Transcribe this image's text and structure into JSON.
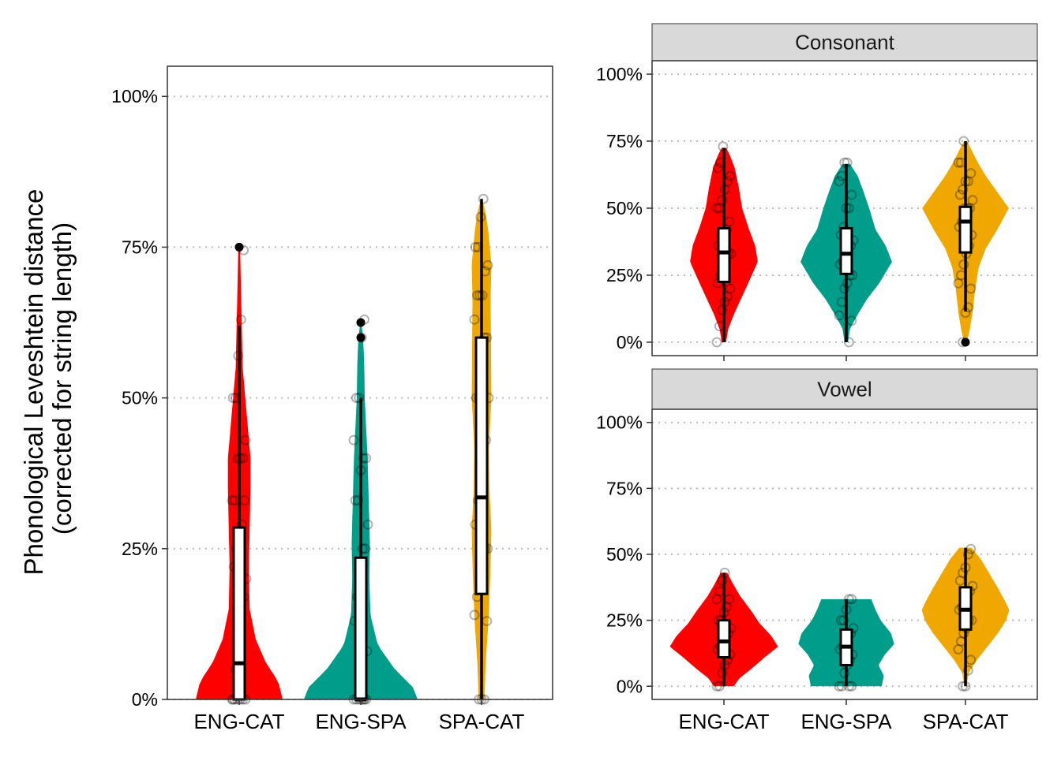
{
  "figure": {
    "ylabel_line1": "Phonological Leveshtein distance",
    "ylabel_line2": "(corrected for string length)"
  },
  "colors": {
    "ENG-CAT": "#ff0000",
    "ENG-SPA": "#009e8a",
    "SPA-CAT": "#f0a800",
    "strip": "#d9d9d9",
    "grid": "#bdbdbd"
  },
  "chart_data": [
    {
      "type": "violin",
      "panel": "overall",
      "title": "",
      "xlabel": "",
      "ylabel": "Phonological Leveshtein distance (corrected for string length)",
      "categories": [
        "ENG-CAT",
        "ENG-SPA",
        "SPA-CAT"
      ],
      "ylim": [
        0,
        1.05
      ],
      "yticks": [
        0,
        0.25,
        0.5,
        0.75,
        1.0
      ],
      "ytick_labels": [
        "0%",
        "25%",
        "50%",
        "75%",
        "100%"
      ],
      "grid": "horizontal dotted",
      "series": [
        {
          "name": "ENG-CAT",
          "box": {
            "q1": 0.0,
            "median": 0.06,
            "q3": 0.285,
            "whisker_low": 0.0,
            "whisker_high": 0.62
          },
          "outliers": [
            0.75
          ],
          "density": [
            [
              0.0,
              1.0
            ],
            [
              0.03,
              0.9
            ],
            [
              0.06,
              0.62
            ],
            [
              0.1,
              0.38
            ],
            [
              0.15,
              0.24
            ],
            [
              0.22,
              0.22
            ],
            [
              0.28,
              0.24
            ],
            [
              0.35,
              0.26
            ],
            [
              0.4,
              0.26
            ],
            [
              0.45,
              0.2
            ],
            [
              0.5,
              0.14
            ],
            [
              0.55,
              0.08
            ],
            [
              0.62,
              0.06
            ],
            [
              0.68,
              0.04
            ],
            [
              0.75,
              0.02
            ]
          ],
          "points": [
            0.0,
            0.0,
            0.0,
            0.0,
            0.0,
            0.0,
            0.0,
            0.05,
            0.1,
            0.14,
            0.17,
            0.2,
            0.22,
            0.25,
            0.28,
            0.29,
            0.33,
            0.33,
            0.33,
            0.4,
            0.4,
            0.4,
            0.43,
            0.5,
            0.5,
            0.57,
            0.63,
            0.745
          ]
        },
        {
          "name": "ENG-SPA",
          "box": {
            "q1": 0.0,
            "median": 0.0,
            "q3": 0.235,
            "whisker_low": 0.0,
            "whisker_high": 0.5
          },
          "outliers": [
            0.6,
            0.625
          ],
          "density": [
            [
              0.0,
              1.0
            ],
            [
              0.02,
              0.92
            ],
            [
              0.05,
              0.6
            ],
            [
              0.09,
              0.3
            ],
            [
              0.14,
              0.17
            ],
            [
              0.2,
              0.15
            ],
            [
              0.26,
              0.16
            ],
            [
              0.33,
              0.14
            ],
            [
              0.4,
              0.12
            ],
            [
              0.5,
              0.07
            ],
            [
              0.56,
              0.06
            ],
            [
              0.6,
              0.04
            ],
            [
              0.625,
              0.01
            ]
          ],
          "points": [
            0.0,
            0.0,
            0.0,
            0.0,
            0.0,
            0.0,
            0.0,
            0.08,
            0.13,
            0.17,
            0.2,
            0.25,
            0.25,
            0.29,
            0.33,
            0.33,
            0.38,
            0.4,
            0.4,
            0.43,
            0.5,
            0.5,
            0.6,
            0.63
          ]
        },
        {
          "name": "SPA-CAT",
          "box": {
            "q1": 0.175,
            "median": 0.335,
            "q3": 0.6,
            "whisker_low": 0.0,
            "whisker_high": 0.83
          },
          "outliers": [],
          "density": [
            [
              0.0,
              0.14
            ],
            [
              0.06,
              0.2
            ],
            [
              0.12,
              0.32
            ],
            [
              0.2,
              0.42
            ],
            [
              0.28,
              0.48
            ],
            [
              0.35,
              0.38
            ],
            [
              0.42,
              0.36
            ],
            [
              0.5,
              0.48
            ],
            [
              0.58,
              0.46
            ],
            [
              0.66,
              0.44
            ],
            [
              0.72,
              0.48
            ],
            [
              0.78,
              0.32
            ],
            [
              0.81,
              0.18
            ],
            [
              0.83,
              0.03
            ]
          ],
          "points": [
            0.0,
            0.0,
            0.0,
            0.13,
            0.14,
            0.17,
            0.2,
            0.25,
            0.25,
            0.25,
            0.29,
            0.33,
            0.33,
            0.4,
            0.43,
            0.5,
            0.5,
            0.5,
            0.57,
            0.6,
            0.6,
            0.63,
            0.67,
            0.67,
            0.67,
            0.71,
            0.72,
            0.75,
            0.75,
            0.8,
            0.83
          ]
        }
      ]
    },
    {
      "type": "violin",
      "panel": "facet",
      "title": "Consonant",
      "xlabel": "",
      "ylabel": "",
      "categories": [
        "ENG-CAT",
        "ENG-SPA",
        "SPA-CAT"
      ],
      "ylim": [
        -0.05,
        1.05
      ],
      "yticks": [
        0,
        0.25,
        0.5,
        0.75,
        1.0
      ],
      "ytick_labels": [
        "0%",
        "25%",
        "50%",
        "75%",
        "100%"
      ],
      "grid": "horizontal dotted",
      "series": [
        {
          "name": "ENG-CAT",
          "box": {
            "q1": 0.225,
            "median": 0.335,
            "q3": 0.425,
            "whisker_low": 0.0,
            "whisker_high": 0.725
          },
          "outliers": [],
          "density": [
            [
              0.0,
              0.05
            ],
            [
              0.05,
              0.1
            ],
            [
              0.1,
              0.22
            ],
            [
              0.15,
              0.36
            ],
            [
              0.22,
              0.56
            ],
            [
              0.3,
              0.78
            ],
            [
              0.36,
              0.72
            ],
            [
              0.42,
              0.58
            ],
            [
              0.5,
              0.42
            ],
            [
              0.58,
              0.34
            ],
            [
              0.65,
              0.25
            ],
            [
              0.7,
              0.13
            ],
            [
              0.725,
              0.05
            ]
          ],
          "points": [
            0.0,
            0.06,
            0.12,
            0.15,
            0.17,
            0.2,
            0.22,
            0.25,
            0.28,
            0.3,
            0.33,
            0.33,
            0.36,
            0.4,
            0.4,
            0.42,
            0.45,
            0.5,
            0.5,
            0.53,
            0.57,
            0.6,
            0.62,
            0.65,
            0.67,
            0.73
          ]
        },
        {
          "name": "ENG-SPA",
          "box": {
            "q1": 0.255,
            "median": 0.33,
            "q3": 0.425,
            "whisker_low": 0.0,
            "whisker_high": 0.665
          },
          "outliers": [],
          "density": [
            [
              0.0,
              0.04
            ],
            [
              0.05,
              0.08
            ],
            [
              0.1,
              0.24
            ],
            [
              0.16,
              0.45
            ],
            [
              0.22,
              0.72
            ],
            [
              0.3,
              1.0
            ],
            [
              0.36,
              0.86
            ],
            [
              0.42,
              0.64
            ],
            [
              0.5,
              0.5
            ],
            [
              0.56,
              0.38
            ],
            [
              0.62,
              0.25
            ],
            [
              0.665,
              0.08
            ]
          ],
          "points": [
            0.0,
            0.08,
            0.1,
            0.15,
            0.2,
            0.22,
            0.25,
            0.25,
            0.29,
            0.3,
            0.33,
            0.33,
            0.36,
            0.38,
            0.4,
            0.43,
            0.5,
            0.5,
            0.55,
            0.6,
            0.62,
            0.67,
            0.67
          ]
        },
        {
          "name": "SPA-CAT",
          "box": {
            "q1": 0.335,
            "median": 0.45,
            "q3": 0.505,
            "whisker_low": 0.115,
            "whisker_high": 0.75
          },
          "outliers": [
            0.0
          ],
          "density": [
            [
              0.0,
              0.03
            ],
            [
              0.05,
              0.1
            ],
            [
              0.11,
              0.16
            ],
            [
              0.2,
              0.22
            ],
            [
              0.28,
              0.3
            ],
            [
              0.35,
              0.46
            ],
            [
              0.42,
              0.72
            ],
            [
              0.5,
              0.98
            ],
            [
              0.56,
              0.72
            ],
            [
              0.62,
              0.46
            ],
            [
              0.67,
              0.28
            ],
            [
              0.72,
              0.13
            ],
            [
              0.75,
              0.03
            ]
          ],
          "points": [
            0.0,
            0.11,
            0.13,
            0.2,
            0.22,
            0.25,
            0.29,
            0.33,
            0.36,
            0.4,
            0.43,
            0.45,
            0.5,
            0.5,
            0.5,
            0.53,
            0.55,
            0.57,
            0.6,
            0.6,
            0.63,
            0.67,
            0.67,
            0.75
          ]
        }
      ]
    },
    {
      "type": "violin",
      "panel": "facet",
      "title": "Vowel",
      "xlabel": "",
      "ylabel": "",
      "categories": [
        "ENG-CAT",
        "ENG-SPA",
        "SPA-CAT"
      ],
      "ylim": [
        -0.05,
        1.05
      ],
      "yticks": [
        0,
        0.25,
        0.5,
        0.75,
        1.0
      ],
      "ytick_labels": [
        "0%",
        "25%",
        "50%",
        "75%",
        "100%"
      ],
      "grid": "horizontal dotted",
      "series": [
        {
          "name": "ENG-CAT",
          "box": {
            "q1": 0.11,
            "median": 0.17,
            "q3": 0.25,
            "whisker_low": 0.0,
            "whisker_high": 0.43
          },
          "outliers": [],
          "density": [
            [
              0.0,
              0.18
            ],
            [
              0.03,
              0.28
            ],
            [
              0.07,
              0.52
            ],
            [
              0.11,
              0.74
            ],
            [
              0.15,
              0.98
            ],
            [
              0.19,
              0.86
            ],
            [
              0.24,
              0.64
            ],
            [
              0.29,
              0.48
            ],
            [
              0.34,
              0.3
            ],
            [
              0.39,
              0.16
            ],
            [
              0.43,
              0.06
            ]
          ],
          "points": [
            0.0,
            0.0,
            0.05,
            0.08,
            0.1,
            0.12,
            0.14,
            0.15,
            0.17,
            0.2,
            0.2,
            0.22,
            0.25,
            0.25,
            0.28,
            0.3,
            0.33,
            0.33,
            0.36,
            0.4,
            0.43
          ]
        },
        {
          "name": "ENG-SPA",
          "box": {
            "q1": 0.08,
            "median": 0.15,
            "q3": 0.215,
            "whisker_low": 0.0,
            "whisker_high": 0.33
          },
          "outliers": [],
          "density": [
            [
              0.0,
              0.68
            ],
            [
              0.04,
              0.72
            ],
            [
              0.08,
              0.62
            ],
            [
              0.12,
              0.74
            ],
            [
              0.16,
              0.92
            ],
            [
              0.2,
              0.86
            ],
            [
              0.25,
              0.66
            ],
            [
              0.29,
              0.56
            ],
            [
              0.33,
              0.48
            ]
          ],
          "points": [
            0.0,
            0.0,
            0.0,
            0.0,
            0.05,
            0.08,
            0.1,
            0.12,
            0.14,
            0.15,
            0.17,
            0.2,
            0.2,
            0.22,
            0.25,
            0.25,
            0.29,
            0.33,
            0.33
          ]
        },
        {
          "name": "SPA-CAT",
          "box": {
            "q1": 0.215,
            "median": 0.29,
            "q3": 0.375,
            "whisker_low": 0.0,
            "whisker_high": 0.525
          },
          "outliers": [],
          "density": [
            [
              0.0,
              0.02
            ],
            [
              0.05,
              0.06
            ],
            [
              0.1,
              0.22
            ],
            [
              0.15,
              0.42
            ],
            [
              0.2,
              0.62
            ],
            [
              0.25,
              0.78
            ],
            [
              0.29,
              0.84
            ],
            [
              0.33,
              0.74
            ],
            [
              0.38,
              0.6
            ],
            [
              0.43,
              0.45
            ],
            [
              0.48,
              0.3
            ],
            [
              0.525,
              0.12
            ]
          ],
          "points": [
            0.0,
            0.0,
            0.06,
            0.1,
            0.14,
            0.17,
            0.2,
            0.22,
            0.25,
            0.25,
            0.29,
            0.3,
            0.33,
            0.33,
            0.36,
            0.38,
            0.4,
            0.43,
            0.45,
            0.5,
            0.52
          ]
        }
      ]
    }
  ]
}
